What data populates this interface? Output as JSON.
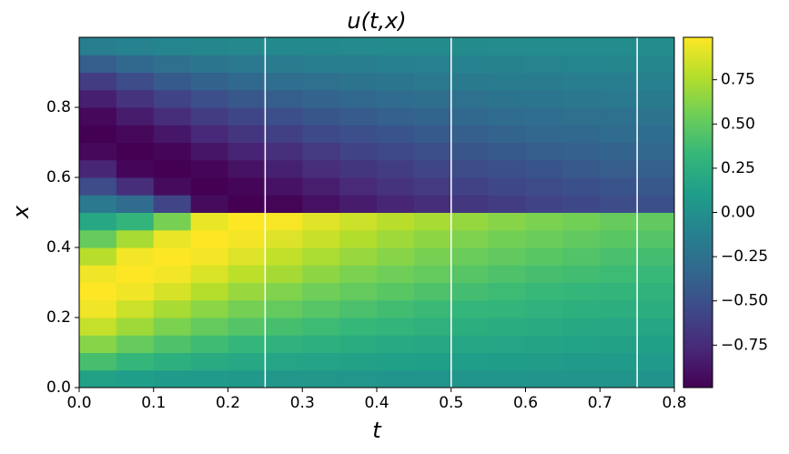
{
  "chart_data": {
    "type": "heatmap",
    "title": "u(t,x)",
    "xlabel": "t",
    "ylabel": "x",
    "x": [
      0.025,
      0.075,
      0.125,
      0.175,
      0.225,
      0.275,
      0.325,
      0.375,
      0.425,
      0.475,
      0.525,
      0.575,
      0.625,
      0.675,
      0.725,
      0.775
    ],
    "y": [
      0.025,
      0.075,
      0.125,
      0.175,
      0.225,
      0.275,
      0.325,
      0.375,
      0.425,
      0.475,
      0.525,
      0.575,
      0.625,
      0.675,
      0.725,
      0.775,
      0.825,
      0.875,
      0.925,
      0.975
    ],
    "z": [
      [
        0.14,
        0.11,
        0.09,
        0.075,
        0.065,
        0.058,
        0.052,
        0.047,
        0.043,
        0.04,
        0.036,
        0.033,
        0.031,
        0.029,
        0.028,
        0.026
      ],
      [
        0.4,
        0.32,
        0.26,
        0.22,
        0.19,
        0.17,
        0.155,
        0.14,
        0.13,
        0.12,
        0.11,
        0.1,
        0.093,
        0.088,
        0.083,
        0.079
      ],
      [
        0.63,
        0.52,
        0.43,
        0.37,
        0.32,
        0.28,
        0.26,
        0.23,
        0.21,
        0.19,
        0.18,
        0.17,
        0.16,
        0.15,
        0.14,
        0.13
      ],
      [
        0.82,
        0.7,
        0.59,
        0.51,
        0.45,
        0.4,
        0.36,
        0.33,
        0.3,
        0.27,
        0.25,
        0.23,
        0.22,
        0.2,
        0.19,
        0.18
      ],
      [
        0.95,
        0.84,
        0.73,
        0.64,
        0.57,
        0.51,
        0.46,
        0.42,
        0.38,
        0.35,
        0.32,
        0.3,
        0.28,
        0.26,
        0.25,
        0.24
      ],
      [
        1.0,
        0.95,
        0.87,
        0.77,
        0.68,
        0.61,
        0.55,
        0.51,
        0.47,
        0.43,
        0.39,
        0.36,
        0.34,
        0.32,
        0.3,
        0.29
      ],
      [
        0.95,
        1.0,
        0.96,
        0.88,
        0.79,
        0.72,
        0.65,
        0.59,
        0.55,
        0.51,
        0.46,
        0.43,
        0.4,
        0.38,
        0.36,
        0.34
      ],
      [
        0.78,
        0.96,
        1.0,
        0.96,
        0.89,
        0.81,
        0.74,
        0.68,
        0.63,
        0.58,
        0.53,
        0.5,
        0.47,
        0.44,
        0.41,
        0.39
      ],
      [
        0.52,
        0.73,
        0.93,
        1.0,
        0.96,
        0.89,
        0.83,
        0.76,
        0.7,
        0.65,
        0.6,
        0.56,
        0.53,
        0.5,
        0.47,
        0.45
      ],
      [
        0.19,
        0.3,
        0.58,
        0.93,
        1.0,
        0.97,
        0.9,
        0.84,
        0.78,
        0.73,
        0.67,
        0.63,
        0.59,
        0.56,
        0.52,
        0.5
      ],
      [
        -0.19,
        -0.3,
        -0.58,
        -0.93,
        -1.0,
        -0.97,
        -0.9,
        -0.84,
        -0.78,
        -0.73,
        -0.67,
        -0.63,
        -0.59,
        -0.56,
        -0.52,
        -0.5
      ],
      [
        -0.52,
        -0.73,
        -0.93,
        -1.0,
        -0.96,
        -0.89,
        -0.83,
        -0.76,
        -0.7,
        -0.65,
        -0.6,
        -0.56,
        -0.53,
        -0.5,
        -0.47,
        -0.45
      ],
      [
        -0.78,
        -0.96,
        -1.0,
        -0.96,
        -0.89,
        -0.81,
        -0.74,
        -0.68,
        -0.63,
        -0.58,
        -0.53,
        -0.5,
        -0.47,
        -0.44,
        -0.41,
        -0.39
      ],
      [
        -0.95,
        -1.0,
        -0.96,
        -0.88,
        -0.79,
        -0.72,
        -0.65,
        -0.59,
        -0.55,
        -0.51,
        -0.46,
        -0.43,
        -0.4,
        -0.38,
        -0.36,
        -0.34
      ],
      [
        -1.0,
        -0.95,
        -0.87,
        -0.77,
        -0.68,
        -0.61,
        -0.55,
        -0.51,
        -0.47,
        -0.43,
        -0.39,
        -0.36,
        -0.34,
        -0.32,
        -0.3,
        -0.29
      ],
      [
        -0.95,
        -0.84,
        -0.73,
        -0.64,
        -0.57,
        -0.51,
        -0.46,
        -0.42,
        -0.38,
        -0.35,
        -0.32,
        -0.3,
        -0.28,
        -0.26,
        -0.25,
        -0.24
      ],
      [
        -0.82,
        -0.7,
        -0.59,
        -0.51,
        -0.45,
        -0.4,
        -0.36,
        -0.33,
        -0.3,
        -0.27,
        -0.25,
        -0.23,
        -0.22,
        -0.2,
        -0.19,
        -0.18
      ],
      [
        -0.63,
        -0.52,
        -0.43,
        -0.37,
        -0.32,
        -0.28,
        -0.26,
        -0.23,
        -0.21,
        -0.19,
        -0.18,
        -0.17,
        -0.16,
        -0.15,
        -0.14,
        -0.13
      ],
      [
        -0.4,
        -0.32,
        -0.26,
        -0.22,
        -0.19,
        -0.17,
        -0.155,
        -0.14,
        -0.13,
        -0.12,
        -0.11,
        -0.1,
        -0.093,
        -0.088,
        -0.083,
        -0.079
      ],
      [
        -0.14,
        -0.11,
        -0.09,
        -0.075,
        -0.065,
        -0.058,
        -0.052,
        -0.047,
        -0.043,
        -0.04,
        -0.036,
        -0.033,
        -0.031,
        -0.029,
        -0.028,
        -0.026
      ]
    ],
    "xlim": [
      0,
      0.8
    ],
    "ylim": [
      0,
      1
    ],
    "xticks": [
      {
        "value": 0,
        "label": "0.0"
      },
      0.1,
      0.2,
      0.3,
      0.4,
      0.5,
      0.6,
      0.7,
      0.8
    ],
    "yticks": [
      {
        "value": 0,
        "label": "0.0"
      },
      0.2,
      0.4,
      0.6,
      0.8
    ],
    "zlim": [
      -0.99,
      0.99
    ],
    "zticks": [
      {
        "value": -0.75,
        "label": "−0.75"
      },
      {
        "value": -0.5,
        "label": "−0.50"
      },
      {
        "value": -0.25,
        "label": "−0.25"
      },
      {
        "value": 0,
        "label": "0.00"
      },
      0.25,
      {
        "value": 0.5,
        "label": "0.50"
      },
      0.75
    ],
    "colormap": [
      "#440154",
      "#482878",
      "#3e4989",
      "#31688e",
      "#26828e",
      "#1f9e89",
      "#35b779",
      "#6ece58",
      "#b5de2b",
      "#fde725"
    ],
    "vlines": [
      0.25,
      0.5,
      0.75
    ],
    "vline_color": "#ffffff"
  }
}
